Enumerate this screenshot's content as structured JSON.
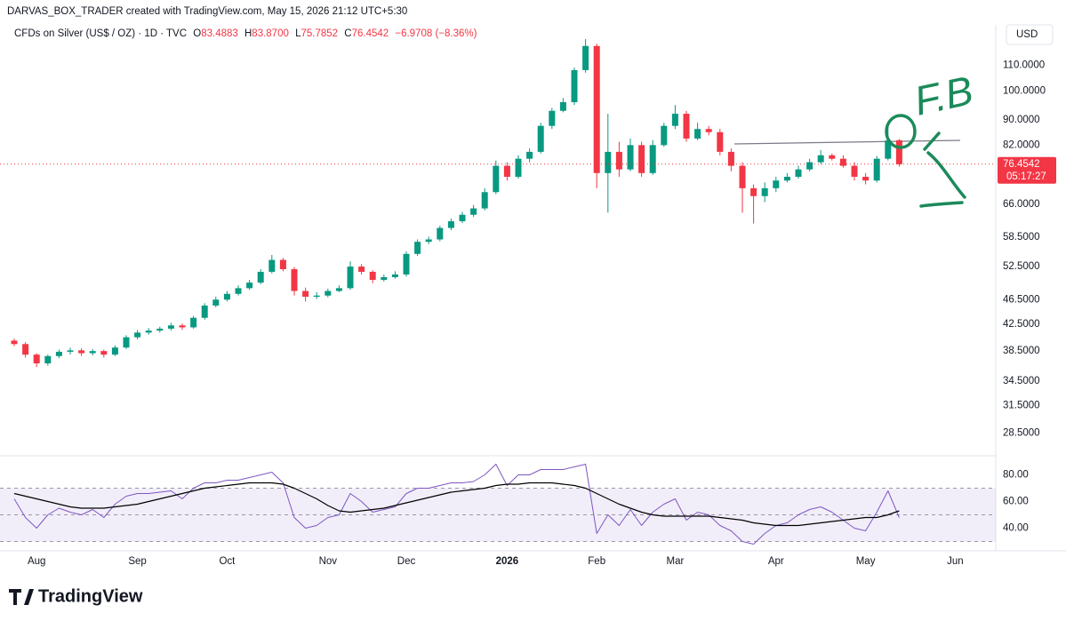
{
  "header": {
    "credit": "DARVAS_BOX_TRADER created with TradingView.com, May 15, 2026 21:12 UTC+5:30",
    "symbol": "CFDs on Silver (US$ / OZ) · 1D · TVC",
    "ohlc_labels": [
      "O",
      "H",
      "L",
      "C"
    ],
    "ohlc": [
      "83.4883",
      "83.8700",
      "75.7852",
      "76.4542"
    ],
    "change": "−6.9708 (−8.36%)",
    "currency": "USD"
  },
  "brand": "TradingView",
  "chart_data": {
    "type": "candlestick",
    "log_scale": true,
    "grid": false,
    "up_color": "#089981",
    "down_color": "#f23645",
    "categories": [
      null,
      null,
      "Aug",
      null,
      null,
      null,
      null,
      null,
      null,
      null,
      null,
      "Sep",
      null,
      null,
      null,
      null,
      null,
      null,
      null,
      "Oct",
      null,
      null,
      null,
      null,
      null,
      null,
      null,
      null,
      "Nov",
      null,
      null,
      null,
      null,
      null,
      null,
      "Dec",
      null,
      null,
      null,
      null,
      null,
      null,
      null,
      null,
      "2026",
      null,
      null,
      null,
      null,
      null,
      null,
      null,
      "Feb",
      null,
      null,
      null,
      null,
      null,
      null,
      "Mar",
      null,
      null,
      null,
      null,
      null,
      null,
      null,
      null,
      "Apr",
      null,
      null,
      null,
      null,
      null,
      null,
      null,
      "May",
      null,
      null,
      null,
      null,
      null,
      null,
      null,
      "Jun",
      null,
      null,
      null
    ],
    "open": [
      40,
      39.5,
      38,
      36.8,
      37.8,
      38.4,
      38.6,
      38.2,
      38.5,
      38,
      39,
      40.5,
      41.2,
      41.5,
      41.8,
      42.3,
      42,
      43.5,
      45.5,
      46.5,
      47.5,
      48.5,
      49.5,
      51.5,
      53.8,
      52,
      48,
      47,
      47.2,
      48,
      48.5,
      52.5,
      51.5,
      50,
      50.5,
      51,
      55,
      57.5,
      58,
      60.5,
      62,
      63.5,
      65,
      69,
      76,
      73,
      78,
      80,
      88,
      93,
      96,
      108,
      118,
      74,
      80,
      75,
      82,
      74,
      82,
      88,
      92,
      84,
      87,
      86,
      80,
      76,
      70,
      68,
      70,
      72,
      73,
      75,
      77,
      79,
      78,
      76,
      73,
      72,
      78,
      83.4883,
      null,
      null,
      null,
      null,
      null,
      null,
      null,
      null
    ],
    "high": [
      40.3,
      39.8,
      38.2,
      38,
      38.7,
      39,
      38.9,
      38.8,
      38.7,
      39.3,
      40.8,
      41.6,
      41.9,
      42.1,
      42.7,
      42.6,
      43.8,
      45.9,
      47,
      48,
      49,
      50,
      52,
      54.8,
      54.2,
      52.4,
      48.6,
      47.8,
      48.4,
      49,
      53.5,
      53,
      51.8,
      51,
      51.6,
      55.5,
      58,
      58.6,
      61,
      62.6,
      64.2,
      65.8,
      70,
      77.5,
      77,
      79,
      81,
      89,
      94,
      97.5,
      109,
      121,
      119,
      92,
      83,
      84,
      83,
      83.5,
      89,
      95,
      93,
      89,
      88,
      87,
      81,
      77,
      71,
      71.5,
      73,
      74,
      76,
      78,
      80.5,
      79.5,
      79,
      77,
      74,
      78.8,
      88,
      83.87,
      null,
      null,
      null,
      null,
      null,
      null,
      null,
      null
    ],
    "low": [
      39.2,
      37.6,
      36.3,
      36.5,
      37.5,
      38,
      37.8,
      37.9,
      37.6,
      37.8,
      38.8,
      40.2,
      40.9,
      41.2,
      41.5,
      41.6,
      41.8,
      43.2,
      45.2,
      46.2,
      47.2,
      48.2,
      49.2,
      51.2,
      51.6,
      47.2,
      46.2,
      46.6,
      46.9,
      47.8,
      48.2,
      51,
      49.4,
      49.7,
      50.2,
      50.6,
      54.6,
      57,
      57.6,
      60,
      61.6,
      63,
      64.5,
      68.5,
      72,
      72.5,
      77,
      79.5,
      87,
      92.5,
      95,
      107,
      70,
      64,
      73,
      74.5,
      73,
      73.5,
      81.5,
      87,
      83,
      83.5,
      85,
      79,
      74.5,
      64,
      61.5,
      66.5,
      69,
      71.5,
      72.5,
      74.5,
      76.5,
      77.5,
      75.5,
      72,
      71,
      71.5,
      77.5,
      75.7852,
      null,
      null,
      null,
      null,
      null,
      null,
      null,
      null
    ],
    "close": [
      39.5,
      38,
      36.8,
      37.8,
      38.4,
      38.6,
      38.2,
      38.5,
      38,
      39,
      40.5,
      41.2,
      41.5,
      41.8,
      42.3,
      42,
      43.5,
      45.5,
      46.5,
      47.5,
      48.5,
      49.5,
      51.5,
      53.8,
      52,
      48,
      47,
      47.2,
      48,
      48.5,
      52.5,
      51.5,
      50,
      50.5,
      51,
      55,
      57.5,
      58,
      60.5,
      62,
      63.5,
      65,
      69,
      76,
      73,
      78,
      80,
      88,
      93,
      96,
      108,
      118,
      74,
      80,
      75,
      82,
      74,
      82,
      88,
      92,
      84,
      87,
      86,
      80,
      76,
      70,
      68,
      70,
      72,
      73,
      75,
      77,
      79,
      78,
      76,
      73,
      72,
      78,
      83.425,
      76.4542,
      null,
      null,
      null,
      null,
      null,
      null,
      null,
      null
    ],
    "ylim": [
      26.3,
      127.5
    ],
    "yticks": [
      {
        "value": 110,
        "label": "110.0000"
      },
      {
        "value": 100,
        "label": "100.0000"
      },
      {
        "value": 90,
        "label": "90.0000"
      },
      {
        "value": 82,
        "label": "82.0000"
      },
      {
        "value": 66,
        "label": "66.0000"
      },
      {
        "value": 58.5,
        "label": "58.5000"
      },
      {
        "value": 52.5,
        "label": "52.5000"
      },
      {
        "value": 46.5,
        "label": "46.5000"
      },
      {
        "value": 42.5,
        "label": "42.5000"
      },
      {
        "value": 38.5,
        "label": "38.5000"
      },
      {
        "value": 34.5,
        "label": "34.5000"
      },
      {
        "value": 31.5,
        "label": "31.5000"
      },
      {
        "value": 28.5,
        "label": "28.5000"
      }
    ],
    "last_price_label": "76.4542",
    "countdown": "05:17:27",
    "annotation": "F.B",
    "rsi": {
      "color": "#7e57c2",
      "ma_color": "#000000",
      "values": [
        62,
        48,
        40,
        50,
        55,
        52,
        50,
        54,
        48,
        58,
        64,
        66,
        66,
        67,
        68,
        62,
        70,
        74,
        74,
        76,
        76,
        78,
        80,
        82,
        74,
        48,
        40,
        42,
        48,
        50,
        66,
        60,
        52,
        54,
        56,
        66,
        70,
        70,
        72,
        74,
        74,
        75,
        80,
        88,
        72,
        80,
        80,
        84,
        84,
        84,
        86,
        88,
        36,
        50,
        42,
        54,
        42,
        52,
        58,
        62,
        46,
        52,
        50,
        42,
        38,
        30,
        28,
        36,
        42,
        44,
        50,
        54,
        56,
        52,
        46,
        40,
        38,
        52,
        68,
        48,
        null,
        null,
        null,
        null,
        null,
        null,
        null,
        null
      ],
      "ma": [
        66,
        64,
        62,
        60,
        58,
        56,
        55,
        55,
        55,
        56,
        57,
        58,
        60,
        62,
        64,
        66,
        68,
        70,
        71,
        72,
        73,
        74,
        74,
        74,
        73,
        70,
        66,
        62,
        57,
        53,
        52,
        53,
        54,
        55,
        57,
        59,
        61,
        63,
        65,
        67,
        68,
        69,
        70,
        72,
        73,
        73,
        74,
        74,
        74,
        73,
        72,
        70,
        66,
        62,
        58,
        55,
        52,
        50,
        49,
        49,
        49,
        49,
        49,
        48,
        47,
        46,
        44,
        43,
        42,
        42,
        42,
        43,
        44,
        45,
        46,
        47,
        48,
        48,
        50,
        53,
        null,
        null,
        null,
        null,
        null,
        null,
        null,
        null
      ],
      "ylim": [
        23,
        93
      ],
      "yticks": [
        {
          "value": 80,
          "label": "80.00"
        },
        {
          "value": 60,
          "label": "60.00"
        },
        {
          "value": 40,
          "label": "40.00"
        }
      ],
      "levels": [
        70,
        50,
        30
      ]
    }
  }
}
